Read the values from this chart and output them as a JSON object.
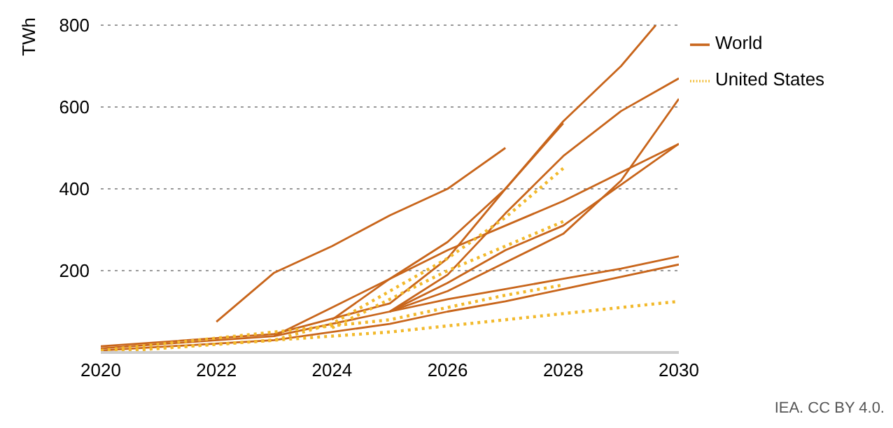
{
  "chart_data": {
    "type": "line",
    "ylabel": "TWh",
    "xlim": [
      2020,
      2030
    ],
    "xticks": [
      2020,
      2022,
      2024,
      2026,
      2028,
      2030
    ],
    "ylim": [
      0,
      800
    ],
    "yticks": [
      {
        "value": 0,
        "label": null
      },
      200,
      400,
      600,
      800
    ],
    "grid": "y",
    "legend": "top right",
    "marker": "none",
    "annotations": [
      "IEA. CC BY 4.0."
    ],
    "series": [
      {
        "name": "World",
        "color": "#c8651b",
        "line_style": "solid",
        "x": [
          2022,
          2023,
          2024,
          2025,
          2026,
          2027
        ],
        "values": [
          75,
          195,
          260,
          335,
          400,
          500
        ]
      },
      {
        "color": "#c8651b",
        "line_style": "solid",
        "x": [
          2020,
          2023,
          2025,
          2026,
          2027,
          2028,
          2029,
          2029.6
        ],
        "values": [
          15,
          45,
          120,
          230,
          400,
          565,
          700,
          800
        ]
      },
      {
        "color": "#c8651b",
        "line_style": "solid",
        "x": [
          2020,
          2023,
          2025,
          2026,
          2027,
          2028,
          2029,
          2030
        ],
        "values": [
          10,
          40,
          100,
          190,
          340,
          480,
          590,
          670
        ]
      },
      {
        "color": "#c8651b",
        "line_style": "solid",
        "x": [
          2025,
          2026,
          2027,
          2028,
          2029,
          2030
        ],
        "values": [
          100,
          150,
          220,
          290,
          420,
          620
        ]
      },
      {
        "color": "#c8651b",
        "line_style": "solid",
        "x": [
          2023,
          2024,
          2025,
          2026,
          2027,
          2028,
          2029,
          2030
        ],
        "values": [
          40,
          110,
          180,
          250,
          310,
          370,
          440,
          510
        ]
      },
      {
        "color": "#c8651b",
        "line_style": "solid",
        "x": [
          2025,
          2026,
          2027,
          2028,
          2029,
          2030
        ],
        "values": [
          100,
          170,
          250,
          310,
          410,
          510
        ]
      },
      {
        "color": "#c8651b",
        "line_style": "solid",
        "x": [
          2025,
          2026,
          2027,
          2028,
          2029,
          2030
        ],
        "values": [
          100,
          130,
          155,
          180,
          205,
          235
        ]
      },
      {
        "color": "#c8651b",
        "line_style": "solid",
        "x": [
          2020,
          2023,
          2025,
          2026,
          2027,
          2028,
          2029,
          2030
        ],
        "values": [
          5,
          30,
          70,
          100,
          125,
          155,
          185,
          215
        ]
      },
      {
        "color": "#c8651b",
        "line_style": "solid",
        "x": [
          2024,
          2025,
          2026,
          2027,
          2028
        ],
        "values": [
          80,
          180,
          270,
          400,
          560
        ]
      },
      {
        "name": "United States",
        "color": "#f2b92c",
        "line_style": "dotted",
        "x": [
          2020,
          2023,
          2024,
          2025,
          2026,
          2027,
          2028
        ],
        "values": [
          0,
          30,
          70,
          150,
          230,
          330,
          450
        ]
      },
      {
        "color": "#f2b92c",
        "line_style": "dotted",
        "x": [
          2024,
          2025,
          2026,
          2027,
          2028
        ],
        "values": [
          60,
          130,
          200,
          260,
          320
        ]
      },
      {
        "color": "#f2b92c",
        "line_style": "dotted",
        "x": [
          2020,
          2025,
          2026,
          2027,
          2028
        ],
        "values": [
          5,
          80,
          110,
          140,
          165
        ]
      },
      {
        "color": "#f2b92c",
        "line_style": "dotted",
        "x": [
          2020,
          2025,
          2030
        ],
        "values": [
          0,
          50,
          125
        ]
      }
    ]
  }
}
